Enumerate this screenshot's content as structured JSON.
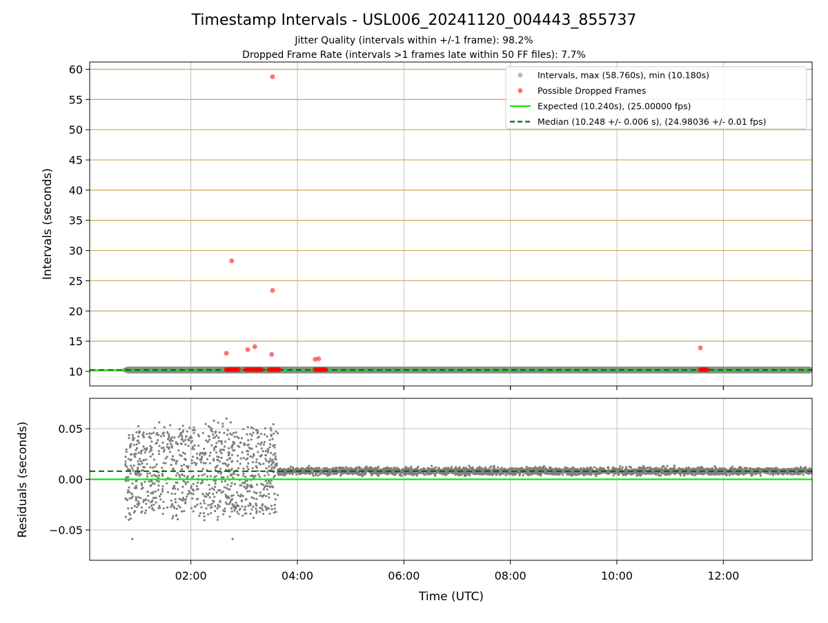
{
  "title": "Timestamp Intervals - USL006_20241120_004443_855737",
  "subtitles": [
    "Jitter Quality (intervals within +/-1 frame): 98.2%",
    "Dropped Frame Rate (intervals >1 frames late within 50 FF files): 7.7%"
  ],
  "colors": {
    "interval": "#7f7f7f",
    "dropped": "#ff0000",
    "expected": "#00ee00",
    "median": "#006400",
    "hgrid_top": "#c8a850",
    "grid": "#c0c0c0"
  },
  "chart_data": [
    {
      "type": "scatter",
      "name": "intervals",
      "xlabel": "Time (UTC)",
      "ylabel": "Intervals (seconds)",
      "xlim": [
        "00:06",
        "13:40"
      ],
      "ylim": [
        7.6,
        61.2
      ],
      "xticks": [
        "02:00",
        "04:00",
        "06:00",
        "08:00",
        "10:00",
        "12:00"
      ],
      "yticks": [
        "10",
        "15",
        "20",
        "25",
        "30",
        "35",
        "40",
        "45",
        "50",
        "55",
        "60"
      ],
      "legend": {
        "position": "top-right",
        "entries": [
          "Intervals, max (58.760s), min (10.180s)",
          "Possible Dropped Frames",
          "Expected (10.240s), (25.00000 fps)",
          "Median (10.248 +/- 0.006 s), (24.98036 +/- 0.01 fps)"
        ]
      },
      "expected_interval": 10.24,
      "median_interval": 10.248,
      "interval_band": {
        "x_start": "00:46",
        "x_end": "13:40",
        "y": 10.24
      },
      "dropped_frames": [
        {
          "x": "02:40",
          "y": 13.0
        },
        {
          "x": "02:46",
          "y": 28.3
        },
        {
          "x": "03:04",
          "y": 13.6
        },
        {
          "x": "03:12",
          "y": 14.1
        },
        {
          "x": "03:31",
          "y": 12.8
        },
        {
          "x": "03:32",
          "y": 23.4
        },
        {
          "x": "03:32",
          "y": 58.76
        },
        {
          "x": "04:20",
          "y": 12.0
        },
        {
          "x": "04:24",
          "y": 12.1
        },
        {
          "x": "11:34",
          "y": 13.9
        }
      ],
      "dropped_clusters": [
        {
          "x_start": "02:40",
          "x_end": "02:54",
          "y": 10.3
        },
        {
          "x_start": "03:02",
          "x_end": "03:20",
          "y": 10.3
        },
        {
          "x_start": "03:28",
          "x_end": "03:40",
          "y": 10.3
        },
        {
          "x_start": "04:20",
          "x_end": "04:32",
          "y": 10.3
        },
        {
          "x_start": "11:34",
          "x_end": "11:42",
          "y": 10.3
        }
      ]
    },
    {
      "type": "scatter",
      "name": "residuals",
      "xlabel": "Time (UTC)",
      "ylabel": "Residuals (seconds)",
      "xlim": [
        "00:06",
        "13:40"
      ],
      "ylim": [
        -0.08,
        0.08
      ],
      "xticks": [
        "02:00",
        "04:00",
        "06:00",
        "08:00",
        "10:00",
        "12:00"
      ],
      "yticks": [
        "0.05",
        "0.00",
        "−0.05"
      ],
      "expected_residual": 0.0,
      "median_residual": 0.008,
      "segments": [
        {
          "x_start": "00:46",
          "x_end": "03:38",
          "center": 0.008,
          "spread": 0.045
        },
        {
          "x_start": "03:38",
          "x_end": "13:40",
          "center": 0.008,
          "spread": 0.004
        }
      ],
      "outliers": [
        {
          "x": "00:50",
          "y": -0.04
        },
        {
          "x": "00:54",
          "y": -0.059
        },
        {
          "x": "02:47",
          "y": -0.059
        },
        {
          "x": "02:40",
          "y": 0.06
        },
        {
          "x": "02:26",
          "y": 0.058
        }
      ]
    }
  ]
}
